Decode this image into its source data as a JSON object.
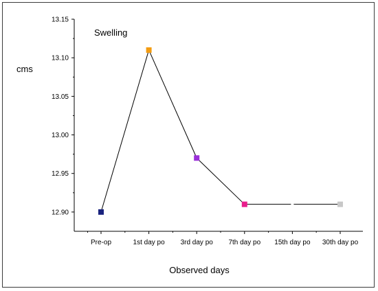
{
  "chart_data": {
    "type": "line",
    "title": "Swelling",
    "xlabel": "Observed days",
    "ylabel": "cms",
    "categories": [
      "Pre-op",
      "1st day po",
      "3rd day po",
      "7th day po",
      "15th day po",
      "30th day po"
    ],
    "ylim": [
      12.875,
      13.15
    ],
    "yticks": [
      "12.90",
      "12.95",
      "13.00",
      "13.05",
      "13.10",
      "13.15"
    ],
    "grid": false,
    "legend": "none",
    "series": [
      {
        "values": [
          12.9,
          13.11,
          12.97,
          12.91,
          null,
          12.91
        ],
        "line_color": "#000000",
        "marker_colors": [
          "#1a237e",
          "#f39c12",
          "#9b30d9",
          "#e91e8c",
          null,
          "#c8c8c8"
        ]
      }
    ]
  }
}
